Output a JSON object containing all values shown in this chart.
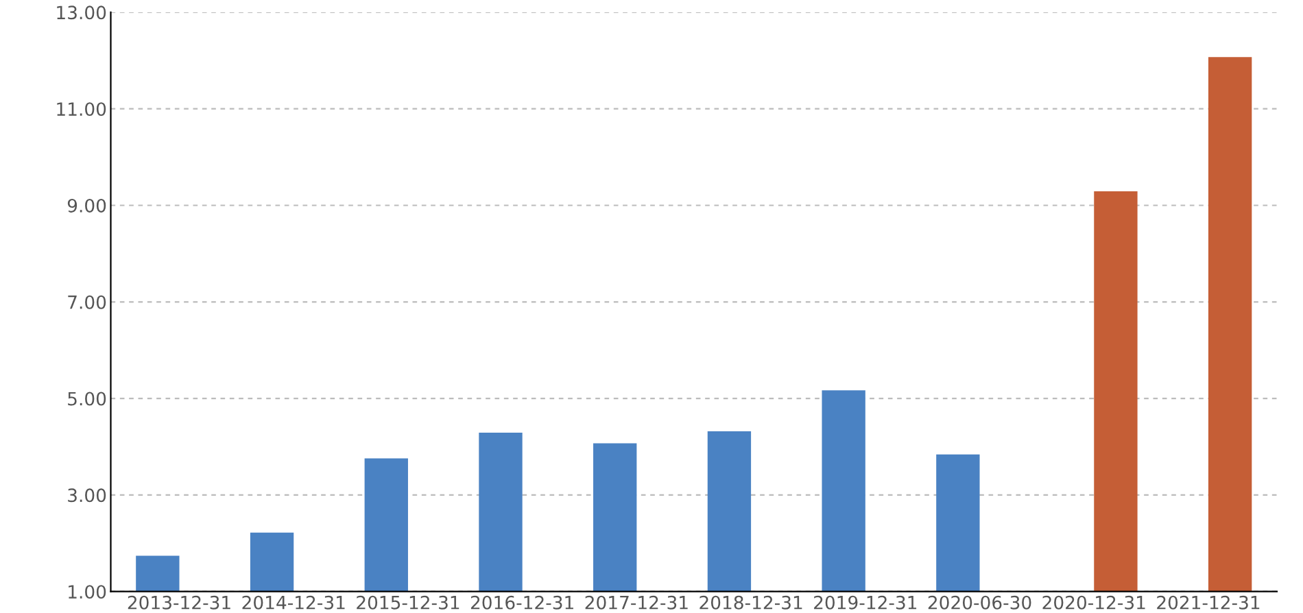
{
  "chart_data": {
    "type": "bar",
    "categories": [
      "2013-12-31",
      "2014-12-31",
      "2015-12-31",
      "2016-12-31",
      "2017-12-31",
      "2018-12-31",
      "2019-12-31",
      "2020-06-30",
      "2020-12-31",
      "2021-12-31"
    ],
    "series": [
      {
        "color": "#4a82c3",
        "values": [
          1.74,
          2.22,
          3.76,
          4.29,
          4.07,
          4.32,
          5.17,
          3.84,
          null,
          null
        ]
      },
      {
        "color": "#c55e36",
        "values": [
          null,
          null,
          null,
          null,
          null,
          null,
          null,
          null,
          9.29,
          12.07
        ]
      }
    ],
    "ylim": [
      1,
      13
    ],
    "yticks": [
      {
        "value": 1,
        "label": "1.00"
      },
      {
        "value": 3,
        "label": "3.00"
      },
      {
        "value": 5,
        "label": "5.00"
      },
      {
        "value": 7,
        "label": "7.00"
      },
      {
        "value": 9,
        "label": "9.00"
      },
      {
        "value": 11,
        "label": "11.00"
      },
      {
        "value": 13,
        "label": "13.00"
      }
    ],
    "grid": "y",
    "legend": false
  }
}
